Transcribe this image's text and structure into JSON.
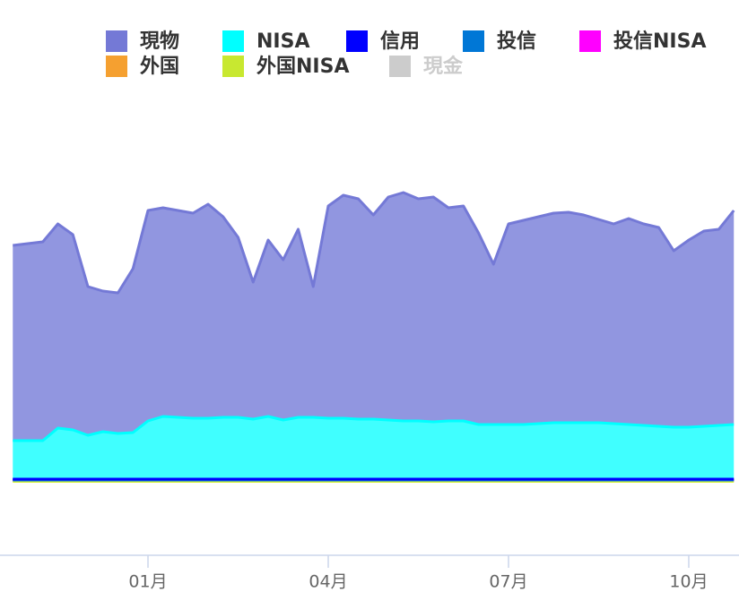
{
  "chart_data": {
    "type": "stacked_area",
    "x": [
      -2.25,
      -2,
      -1.75,
      -1.5,
      -1.25,
      -1,
      -0.75,
      -0.5,
      -0.25,
      0,
      0.25,
      0.5,
      0.75,
      1,
      1.25,
      1.5,
      1.75,
      2,
      2.25,
      2.5,
      2.75,
      3,
      3.25,
      3.5,
      3.75,
      4,
      4.25,
      4.5,
      4.75,
      5,
      5.25,
      5.5,
      5.75,
      6,
      6.25,
      6.5,
      6.75,
      7,
      7.25,
      7.5,
      7.75,
      8,
      8.25,
      8.5,
      8.75,
      9,
      9.25,
      9.5,
      9.75
    ],
    "xlim": [
      -2.463,
      9.836
    ],
    "xticks": [
      {
        "value": 0,
        "label": "01月"
      },
      {
        "value": 3,
        "label": "04月"
      },
      {
        "value": 6,
        "label": "07月"
      },
      {
        "value": 9,
        "label": "10月"
      }
    ],
    "ylim": [
      -81,
      439
    ],
    "series": [
      {
        "name": "現物",
        "color": "#7479d6",
        "fill": "#9196e0",
        "values": [
          218,
          220,
          222,
          228,
          218,
          166,
          157,
          157,
          183,
          235,
          233,
          231,
          229,
          239,
          224,
          201,
          153,
          197,
          179,
          210,
          146,
          237,
          249,
          246,
          228,
          249,
          255,
          248,
          251,
          238,
          240,
          214,
          179,
          224,
          228,
          231,
          234,
          235,
          232,
          227,
          223,
          230,
          225,
          222,
          197,
          209,
          218,
          219,
          239
        ]
      },
      {
        "name": "NISA",
        "color": "#00ffff",
        "fill": "#40ffff",
        "values": [
          43,
          43,
          43,
          57,
          55,
          49,
          53,
          51,
          52,
          65,
          70,
          69,
          68,
          68,
          69,
          69,
          67,
          70,
          66,
          69,
          69,
          68,
          68,
          67,
          67,
          66,
          65,
          65,
          64,
          65,
          65,
          61,
          61,
          61,
          61,
          62,
          63,
          63,
          63,
          63,
          62,
          61,
          60,
          59,
          58,
          58,
          59,
          60,
          61
        ]
      },
      {
        "name": "信用",
        "color": "#0000ff",
        "fill": "#0000ff",
        "values": [
          1,
          1,
          1,
          1,
          1,
          1,
          1,
          1,
          1,
          1,
          1,
          1,
          1,
          1,
          1,
          1,
          1,
          1,
          1,
          1,
          1,
          1,
          1,
          1,
          1,
          1,
          1,
          1,
          1,
          1,
          1,
          1,
          1,
          1,
          1,
          1,
          1,
          1,
          1,
          1,
          1,
          1,
          1,
          1,
          1,
          1,
          1,
          1,
          1
        ]
      },
      {
        "name": "投信",
        "color": "#0077d6",
        "fill": "#0077d6",
        "values": [
          0,
          0,
          0,
          0,
          0,
          0,
          0,
          0,
          0,
          0,
          0,
          0,
          0,
          0,
          0,
          0,
          0,
          0,
          0,
          0,
          0,
          0,
          0,
          0,
          0,
          0,
          0,
          0,
          0,
          0,
          0,
          0,
          0,
          0,
          0,
          0,
          0,
          0,
          0,
          0,
          0,
          0,
          0,
          0,
          0,
          0,
          0,
          0,
          0
        ]
      },
      {
        "name": "投信NISA",
        "color": "#ff00ff",
        "fill": "#ff00ff",
        "values": [
          0,
          0,
          0,
          0,
          0,
          0,
          0,
          0,
          0,
          0,
          0,
          0,
          0,
          0,
          0,
          0,
          0,
          0,
          0,
          0,
          0,
          0,
          0,
          0,
          0,
          0,
          0,
          0,
          0,
          0,
          0,
          0,
          0,
          0,
          0,
          0,
          0,
          0,
          0,
          0,
          0,
          0,
          0,
          0,
          0,
          0,
          0,
          0,
          0
        ]
      },
      {
        "name": "外国",
        "color": "#f5a030",
        "fill": "#f5a030",
        "values": [
          0,
          0,
          0,
          0,
          0,
          0,
          0,
          0,
          0,
          0,
          0,
          0,
          0,
          0,
          0,
          0,
          0,
          0,
          0,
          0,
          0,
          0,
          0,
          0,
          0,
          0,
          0,
          0,
          0,
          0,
          0,
          0,
          0,
          0,
          0,
          0,
          0,
          0,
          0,
          0,
          0,
          0,
          0,
          0,
          0,
          0,
          0,
          0,
          0
        ]
      },
      {
        "name": "外国NISA",
        "color": "#c8e830",
        "fill": "#d4f03c",
        "values": [
          3,
          3,
          3,
          3,
          3,
          3,
          3,
          3,
          3,
          3,
          3,
          3,
          3,
          3,
          3,
          3,
          3,
          3,
          3,
          3,
          3,
          3,
          3,
          3,
          3,
          3,
          3,
          3,
          3,
          3,
          3,
          3,
          3,
          3,
          3,
          3,
          3,
          3,
          3,
          3,
          3,
          3,
          3,
          3,
          3,
          3,
          3,
          3,
          3
        ]
      },
      {
        "name": "現金",
        "color": "#cccccc",
        "fill": "#cccccc",
        "visible": false,
        "values": [
          0,
          0,
          0,
          0,
          0,
          0,
          0,
          0,
          0,
          0,
          0,
          0,
          0,
          0,
          0,
          0,
          0,
          0,
          0,
          0,
          0,
          0,
          0,
          0,
          0,
          0,
          0,
          0,
          0,
          0,
          0,
          0,
          0,
          0,
          0,
          0,
          0,
          0,
          0,
          0,
          0,
          0,
          0,
          0,
          0,
          0,
          0,
          0,
          0
        ]
      }
    ]
  }
}
